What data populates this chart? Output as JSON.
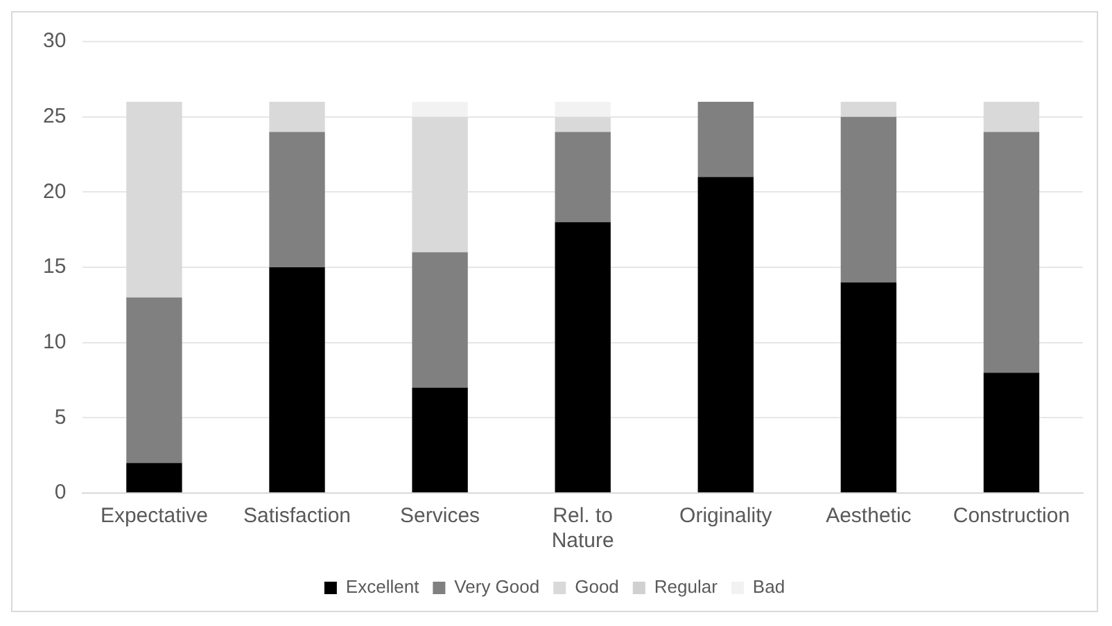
{
  "chart_data": {
    "type": "bar",
    "stacked": true,
    "categories": [
      "Expectative",
      "Satisfaction",
      "Services",
      "Rel. to Nature",
      "Originality",
      "Aesthetic",
      "Construction"
    ],
    "series": [
      {
        "name": "Excellent",
        "color": "#000000",
        "values": [
          2,
          15,
          7,
          18,
          21,
          14,
          8
        ]
      },
      {
        "name": "Very Good",
        "color": "#808080",
        "values": [
          11,
          9,
          9,
          6,
          5,
          11,
          16
        ]
      },
      {
        "name": "Good",
        "color": "#d9d9d9",
        "values": [
          13,
          2,
          9,
          1,
          0,
          1,
          2
        ]
      },
      {
        "name": "Regular",
        "color": "#d0d0d0",
        "values": [
          0,
          0,
          0,
          0,
          0,
          0,
          0
        ]
      },
      {
        "name": "Bad",
        "color": "#f2f2f2",
        "values": [
          0,
          0,
          1,
          1,
          0,
          0,
          0
        ]
      }
    ],
    "ylim": [
      0,
      30
    ],
    "yticks": [
      0,
      5,
      10,
      15,
      20,
      25,
      30
    ],
    "grid": "y",
    "legend": "bottom"
  }
}
